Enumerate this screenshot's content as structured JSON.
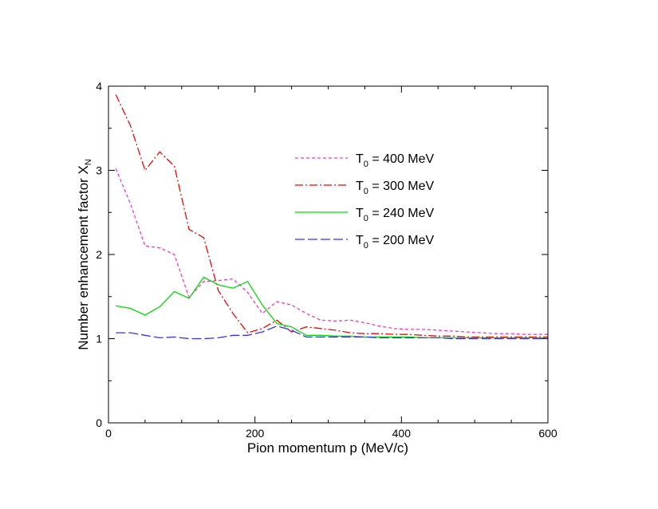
{
  "chart_data": {
    "type": "line",
    "xlabel": "Pion momentum p (MeV/c)",
    "ylabel_main": "Number enhancement factor X",
    "ylabel_sub": "N",
    "xlim": [
      0,
      600
    ],
    "ylim": [
      0,
      4
    ],
    "x_ticks": [
      0,
      200,
      400,
      600
    ],
    "y_ticks": [
      0,
      1,
      2,
      3,
      4
    ],
    "x_minor_step": 50,
    "y_minor_step": 0.5,
    "grid": false,
    "legend_position": "upper-right",
    "series": [
      {
        "name_main": "T",
        "name_sub": "0",
        "name_rest": " = 400 MeV",
        "color": "#ff33cc",
        "dash": "4,3",
        "x": [
          10,
          30,
          50,
          70,
          90,
          110,
          130,
          150,
          170,
          190,
          210,
          230,
          250,
          270,
          290,
          310,
          330,
          350,
          370,
          390,
          410,
          430,
          450,
          470,
          490,
          510,
          530,
          550,
          570,
          590,
          600
        ],
        "y": [
          3.02,
          2.6,
          2.1,
          2.08,
          2.0,
          1.49,
          1.68,
          1.69,
          1.71,
          1.55,
          1.3,
          1.44,
          1.4,
          1.3,
          1.22,
          1.21,
          1.22,
          1.19,
          1.15,
          1.12,
          1.11,
          1.11,
          1.1,
          1.09,
          1.08,
          1.07,
          1.06,
          1.06,
          1.05,
          1.05,
          1.05
        ]
      },
      {
        "name_main": "T",
        "name_sub": "0",
        "name_rest": " = 300 MeV",
        "color": "#ff0000",
        "dash": "10,3,2,3",
        "x": [
          10,
          30,
          50,
          70,
          90,
          110,
          130,
          150,
          170,
          190,
          210,
          230,
          250,
          270,
          290,
          310,
          330,
          350,
          370,
          390,
          410,
          430,
          450,
          470,
          490,
          510,
          530,
          550,
          570,
          590,
          600
        ],
        "y": [
          3.9,
          3.53,
          3.0,
          3.22,
          3.05,
          2.3,
          2.2,
          1.57,
          1.3,
          1.07,
          1.12,
          1.22,
          1.08,
          1.14,
          1.12,
          1.1,
          1.07,
          1.06,
          1.06,
          1.05,
          1.05,
          1.04,
          1.03,
          1.03,
          1.02,
          1.02,
          1.02,
          1.02,
          1.02,
          1.02,
          1.02
        ]
      },
      {
        "name_main": "T",
        "name_sub": "0",
        "name_rest": " = 240 MeV",
        "color": "#00dd00",
        "dash": "",
        "x": [
          10,
          30,
          50,
          70,
          90,
          110,
          130,
          150,
          170,
          190,
          210,
          230,
          250,
          270,
          290,
          310,
          330,
          350,
          370,
          390,
          410,
          430,
          450,
          470,
          490,
          510,
          530,
          550,
          570,
          590,
          600
        ],
        "y": [
          1.39,
          1.36,
          1.28,
          1.38,
          1.56,
          1.48,
          1.73,
          1.64,
          1.6,
          1.68,
          1.4,
          1.18,
          1.14,
          1.04,
          1.04,
          1.03,
          1.03,
          1.02,
          1.02,
          1.02,
          1.02,
          1.01,
          1.01,
          1.01,
          1.01,
          1.01,
          1.01,
          1.01,
          1.01,
          1.01,
          1.01
        ]
      },
      {
        "name_main": "T",
        "name_sub": "0",
        "name_rest": " = 200 MeV",
        "color": "#3333ff",
        "dash": "12,4",
        "x": [
          10,
          30,
          50,
          70,
          90,
          110,
          130,
          150,
          170,
          190,
          210,
          230,
          250,
          270,
          290,
          310,
          330,
          350,
          370,
          390,
          410,
          430,
          450,
          470,
          490,
          510,
          530,
          550,
          570,
          590,
          600
        ],
        "y": [
          1.07,
          1.07,
          1.04,
          1.01,
          1.02,
          1.0,
          1.0,
          1.01,
          1.04,
          1.04,
          1.08,
          1.15,
          1.1,
          1.02,
          1.02,
          1.02,
          1.02,
          1.02,
          1.01,
          1.01,
          1.01,
          1.01,
          1.01,
          1.0,
          1.0,
          1.0,
          1.0,
          1.0,
          1.0,
          1.0,
          1.0
        ]
      }
    ]
  }
}
